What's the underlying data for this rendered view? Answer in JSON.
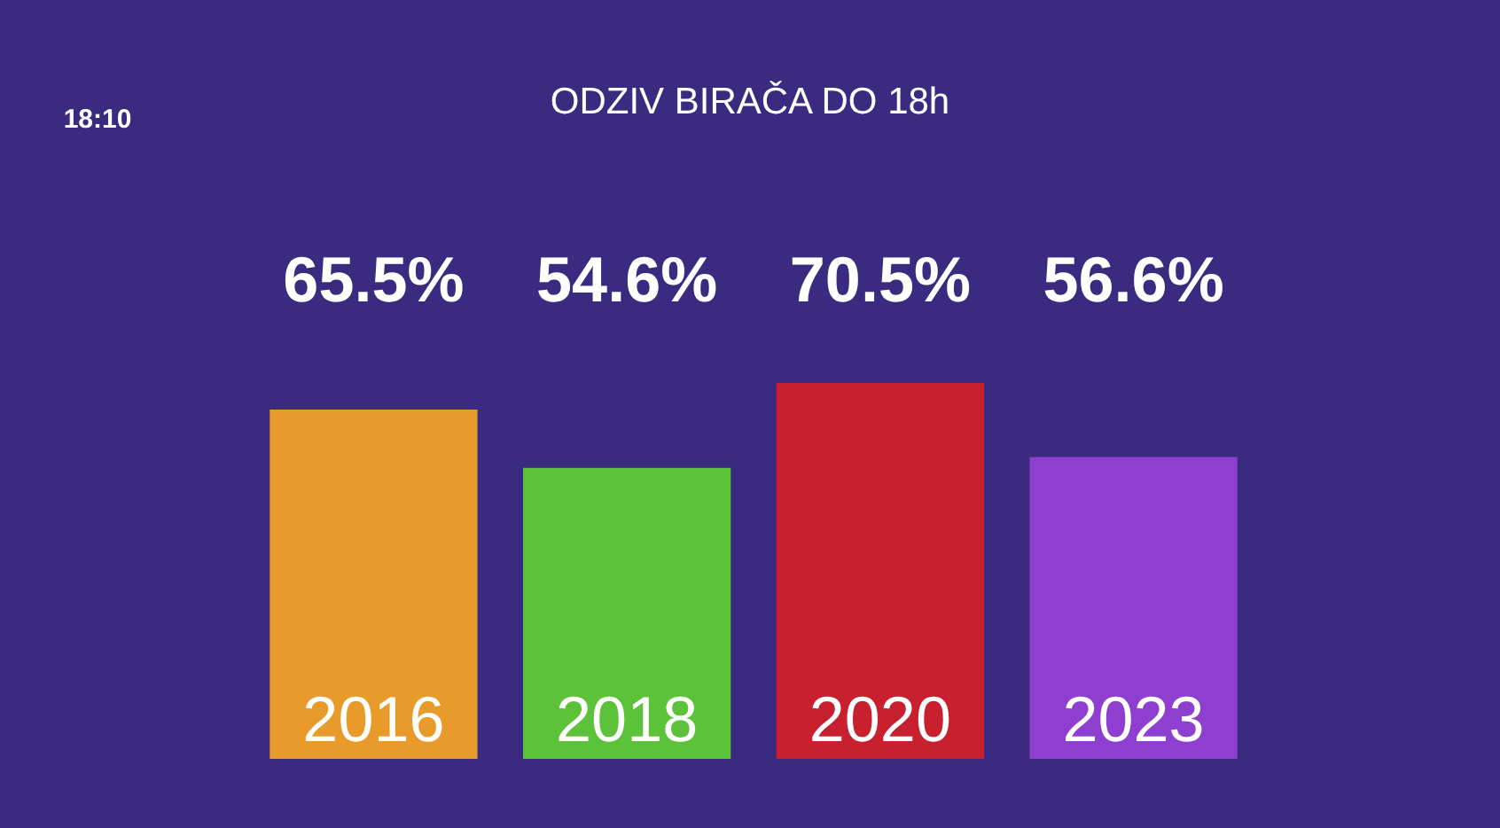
{
  "chart_data": {
    "type": "bar",
    "title": "ODZIV BIRAČA DO 18h",
    "categories": [
      "2016",
      "2018",
      "2020",
      "2023"
    ],
    "values": [
      65.5,
      54.6,
      70.5,
      56.6
    ],
    "colors": [
      "#e89a2a",
      "#5cc23a",
      "#c8202e",
      "#8f3fcf"
    ],
    "value_labels": [
      "65.5%",
      "54.6%",
      "70.5%",
      "56.6%"
    ],
    "annotations": [
      "18:10"
    ]
  }
}
